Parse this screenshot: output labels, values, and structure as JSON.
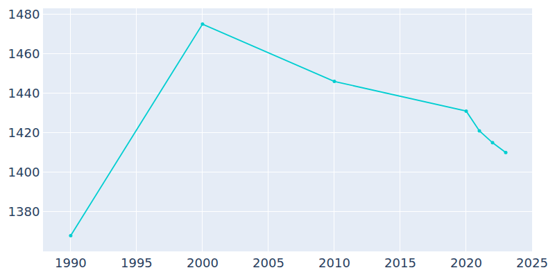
{
  "chart_data": {
    "type": "line",
    "x": [
      1990,
      2000,
      2010,
      2020,
      2021,
      2022,
      2023
    ],
    "values": [
      1368,
      1475,
      1446,
      1431,
      1421,
      1415,
      1410
    ],
    "color": "#00CED1",
    "marker": "circle",
    "xlim": [
      1987.9,
      2025
    ],
    "xticks": [
      1990,
      1995,
      2000,
      2005,
      2010,
      2015,
      2020,
      2025
    ],
    "ylim": [
      1360,
      1483
    ],
    "yticks": [
      1380,
      1400,
      1420,
      1440,
      1460,
      1480
    ],
    "grid": true
  }
}
